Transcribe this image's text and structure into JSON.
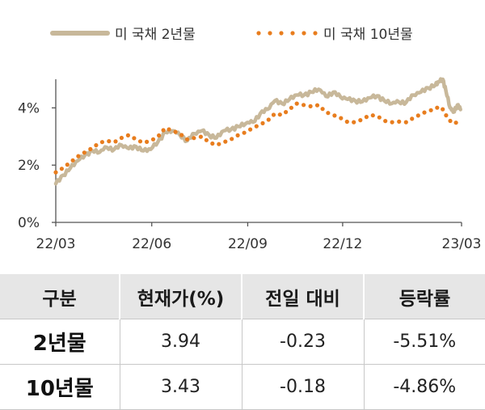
{
  "chart_data": {
    "type": "line",
    "x_ticks": [
      "22/03",
      "22/06",
      "22/09",
      "22/12",
      "23/03"
    ],
    "y_ticks": [
      "0%",
      "2%",
      "4%"
    ],
    "ylim": [
      0,
      5
    ],
    "legend_position": "top",
    "series": [
      {
        "name": "미 국채 2년물",
        "style": "solid",
        "color": "#c8b89a",
        "x": [
          "2022-03-01",
          "2022-03-08",
          "2022-03-15",
          "2022-03-22",
          "2022-03-29",
          "2022-04-05",
          "2022-04-12",
          "2022-04-19",
          "2022-04-26",
          "2022-05-03",
          "2022-05-10",
          "2022-05-17",
          "2022-05-24",
          "2022-05-31",
          "2022-06-07",
          "2022-06-14",
          "2022-06-21",
          "2022-06-28",
          "2022-07-05",
          "2022-07-12",
          "2022-07-19",
          "2022-07-26",
          "2022-08-02",
          "2022-08-09",
          "2022-08-16",
          "2022-08-23",
          "2022-08-30",
          "2022-09-06",
          "2022-09-13",
          "2022-09-20",
          "2022-09-27",
          "2022-10-04",
          "2022-10-11",
          "2022-10-18",
          "2022-10-25",
          "2022-11-01",
          "2022-11-08",
          "2022-11-15",
          "2022-11-22",
          "2022-11-29",
          "2022-12-06",
          "2022-12-13",
          "2022-12-20",
          "2022-12-27",
          "2023-01-03",
          "2023-01-10",
          "2023-01-17",
          "2023-01-24",
          "2023-01-31",
          "2023-02-07",
          "2023-02-14",
          "2023-02-21",
          "2023-02-28",
          "2023-03-03",
          "2023-03-07",
          "2023-03-10",
          "2023-03-14",
          "2023-03-17",
          "2023-03-21",
          "2023-03-24"
        ],
        "y": [
          1.35,
          1.65,
          1.9,
          2.15,
          2.35,
          2.5,
          2.45,
          2.62,
          2.55,
          2.7,
          2.58,
          2.65,
          2.5,
          2.55,
          2.82,
          3.15,
          3.2,
          3.05,
          2.85,
          3.1,
          3.2,
          3.05,
          2.95,
          3.2,
          3.25,
          3.35,
          3.45,
          3.5,
          3.8,
          3.95,
          4.25,
          4.15,
          4.3,
          4.45,
          4.45,
          4.55,
          4.65,
          4.4,
          4.55,
          4.38,
          4.3,
          4.25,
          4.22,
          4.35,
          4.42,
          4.25,
          4.15,
          4.2,
          4.2,
          4.45,
          4.55,
          4.7,
          4.8,
          4.9,
          5.0,
          4.6,
          4.0,
          3.85,
          4.1,
          3.94
        ]
      },
      {
        "name": "미 국채 10년물",
        "style": "dotted",
        "color": "#e87d1e",
        "x": [
          "2022-03-01",
          "2022-03-08",
          "2022-03-15",
          "2022-03-22",
          "2022-03-29",
          "2022-04-05",
          "2022-04-12",
          "2022-04-19",
          "2022-04-26",
          "2022-05-03",
          "2022-05-10",
          "2022-05-17",
          "2022-05-24",
          "2022-05-31",
          "2022-06-07",
          "2022-06-14",
          "2022-06-21",
          "2022-06-28",
          "2022-07-05",
          "2022-07-12",
          "2022-07-19",
          "2022-07-26",
          "2022-08-02",
          "2022-08-09",
          "2022-08-16",
          "2022-08-23",
          "2022-08-30",
          "2022-09-06",
          "2022-09-13",
          "2022-09-20",
          "2022-09-27",
          "2022-10-04",
          "2022-10-11",
          "2022-10-18",
          "2022-10-25",
          "2022-11-01",
          "2022-11-08",
          "2022-11-15",
          "2022-11-22",
          "2022-11-29",
          "2022-12-06",
          "2022-12-13",
          "2022-12-20",
          "2022-12-27",
          "2023-01-03",
          "2023-01-10",
          "2023-01-17",
          "2023-01-24",
          "2023-01-31",
          "2023-02-07",
          "2023-02-14",
          "2023-02-21",
          "2023-02-28",
          "2023-03-03",
          "2023-03-07",
          "2023-03-10",
          "2023-03-14",
          "2023-03-17",
          "2023-03-21",
          "2023-03-24"
        ],
        "y": [
          1.75,
          1.9,
          2.1,
          2.3,
          2.45,
          2.6,
          2.78,
          2.85,
          2.8,
          2.95,
          3.05,
          2.9,
          2.78,
          2.85,
          3.0,
          3.3,
          3.2,
          3.1,
          2.9,
          2.95,
          3.0,
          2.8,
          2.7,
          2.8,
          2.9,
          3.05,
          3.15,
          3.3,
          3.42,
          3.55,
          3.8,
          3.75,
          3.95,
          4.15,
          4.1,
          4.05,
          4.1,
          3.85,
          3.75,
          3.65,
          3.5,
          3.5,
          3.6,
          3.75,
          3.72,
          3.55,
          3.5,
          3.52,
          3.5,
          3.65,
          3.78,
          3.9,
          3.95,
          4.05,
          3.95,
          3.75,
          3.55,
          3.45,
          3.5,
          3.43
        ]
      }
    ]
  },
  "table": {
    "headers": [
      "구분",
      "현재가(%)",
      "전일 대비",
      "등락률"
    ],
    "rows": [
      {
        "label": "2년물",
        "current": "3.94",
        "change": "-0.23",
        "rate": "-5.51%"
      },
      {
        "label": "10년물",
        "current": "3.43",
        "change": "-0.18",
        "rate": "-4.86%"
      }
    ]
  }
}
